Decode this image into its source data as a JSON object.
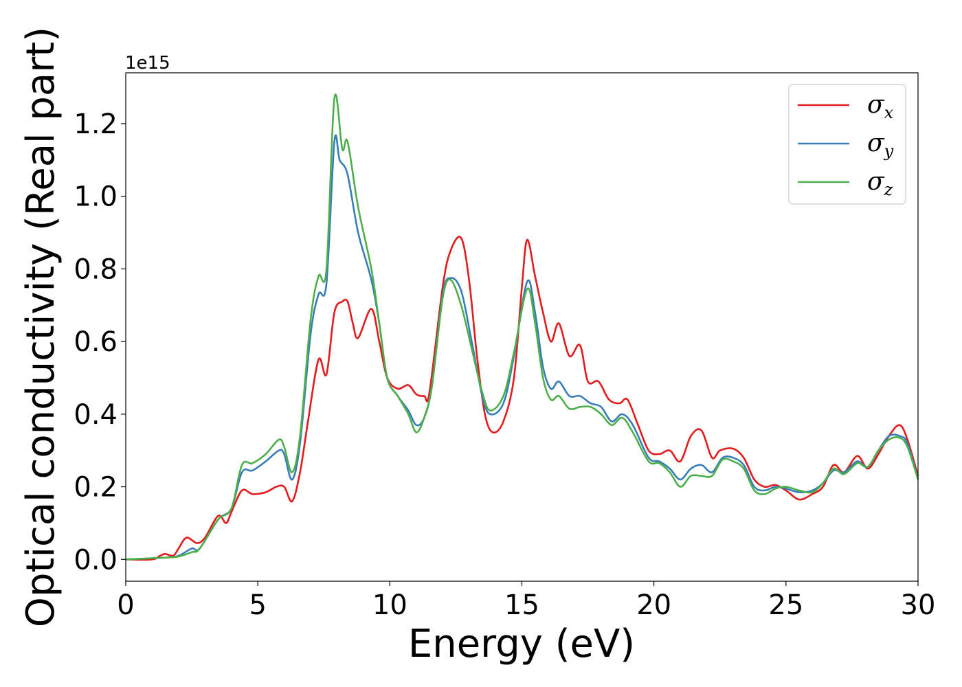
{
  "chart_data": {
    "type": "line",
    "title": "",
    "xlabel": "Energy (eV)",
    "ylabel": "Optical conductivity (Real part)",
    "y_offset_label": "1e15",
    "xlim": [
      0,
      30
    ],
    "ylim": [
      -0.06,
      1.34
    ],
    "xticks": [
      0,
      5,
      10,
      15,
      20,
      25,
      30
    ],
    "xtick_labels": [
      "0",
      "5",
      "10",
      "15",
      "20",
      "25",
      "30"
    ],
    "yticks": [
      0.0,
      0.2,
      0.4,
      0.6,
      0.8,
      1.0,
      1.2
    ],
    "ytick_labels": [
      "0.0",
      "0.2",
      "0.4",
      "0.6",
      "0.8",
      "1.0",
      "1.2"
    ],
    "grid": false,
    "legend_position": "top-right",
    "series": [
      {
        "name": "σx",
        "legend_symbol": "σ",
        "legend_subscript": "x",
        "color": "#e41a1c",
        "points": [
          [
            0,
            0
          ],
          [
            1,
            0
          ],
          [
            1.3,
            0.01
          ],
          [
            1.5,
            0.015
          ],
          [
            1.8,
            0.01
          ],
          [
            2,
            0.03
          ],
          [
            2.3,
            0.06
          ],
          [
            2.7,
            0.045
          ],
          [
            3,
            0.06
          ],
          [
            3.5,
            0.12
          ],
          [
            3.8,
            0.1
          ],
          [
            4,
            0.13
          ],
          [
            4.4,
            0.19
          ],
          [
            4.8,
            0.18
          ],
          [
            5.3,
            0.185
          ],
          [
            5.7,
            0.2
          ],
          [
            6,
            0.2
          ],
          [
            6.3,
            0.16
          ],
          [
            6.6,
            0.24
          ],
          [
            6.9,
            0.38
          ],
          [
            7.3,
            0.55
          ],
          [
            7.6,
            0.51
          ],
          [
            7.9,
            0.68
          ],
          [
            8.2,
            0.71
          ],
          [
            8.4,
            0.71
          ],
          [
            8.6,
            0.65
          ],
          [
            8.8,
            0.61
          ],
          [
            9.3,
            0.69
          ],
          [
            9.6,
            0.6
          ],
          [
            9.9,
            0.5
          ],
          [
            10.3,
            0.47
          ],
          [
            10.7,
            0.48
          ],
          [
            11,
            0.455
          ],
          [
            11.3,
            0.45
          ],
          [
            11.5,
            0.46
          ],
          [
            12,
            0.75
          ],
          [
            12.3,
            0.85
          ],
          [
            12.7,
            0.885
          ],
          [
            13,
            0.77
          ],
          [
            13.3,
            0.56
          ],
          [
            13.6,
            0.4
          ],
          [
            13.9,
            0.35
          ],
          [
            14.3,
            0.38
          ],
          [
            14.7,
            0.5
          ],
          [
            15,
            0.75
          ],
          [
            15.2,
            0.88
          ],
          [
            15.5,
            0.78
          ],
          [
            15.8,
            0.68
          ],
          [
            16.1,
            0.6
          ],
          [
            16.4,
            0.65
          ],
          [
            16.8,
            0.56
          ],
          [
            17.2,
            0.59
          ],
          [
            17.5,
            0.49
          ],
          [
            17.9,
            0.49
          ],
          [
            18.3,
            0.44
          ],
          [
            18.7,
            0.43
          ],
          [
            19,
            0.44
          ],
          [
            19.4,
            0.37
          ],
          [
            19.8,
            0.3
          ],
          [
            20.2,
            0.29
          ],
          [
            20.6,
            0.3
          ],
          [
            21,
            0.27
          ],
          [
            21.4,
            0.34
          ],
          [
            21.8,
            0.355
          ],
          [
            22.2,
            0.28
          ],
          [
            22.5,
            0.3
          ],
          [
            23,
            0.305
          ],
          [
            23.4,
            0.28
          ],
          [
            23.8,
            0.22
          ],
          [
            24.2,
            0.2
          ],
          [
            24.6,
            0.205
          ],
          [
            25,
            0.19
          ],
          [
            25.5,
            0.165
          ],
          [
            26,
            0.18
          ],
          [
            26.4,
            0.2
          ],
          [
            26.8,
            0.26
          ],
          [
            27.2,
            0.24
          ],
          [
            27.7,
            0.285
          ],
          [
            28.1,
            0.25
          ],
          [
            28.5,
            0.29
          ],
          [
            28.9,
            0.34
          ],
          [
            29.3,
            0.37
          ],
          [
            29.6,
            0.33
          ],
          [
            30,
            0.23
          ]
        ]
      },
      {
        "name": "σy",
        "legend_symbol": "σ",
        "legend_subscript": "y",
        "color": "#377eb8",
        "points": [
          [
            0,
            0
          ],
          [
            1.5,
            0.005
          ],
          [
            2,
            0.01
          ],
          [
            2.5,
            0.03
          ],
          [
            2.8,
            0.03
          ],
          [
            3.5,
            0.11
          ],
          [
            4,
            0.14
          ],
          [
            4.4,
            0.24
          ],
          [
            4.8,
            0.245
          ],
          [
            5.3,
            0.27
          ],
          [
            5.8,
            0.3
          ],
          [
            6,
            0.29
          ],
          [
            6.3,
            0.22
          ],
          [
            6.6,
            0.32
          ],
          [
            7,
            0.62
          ],
          [
            7.3,
            0.73
          ],
          [
            7.6,
            0.76
          ],
          [
            7.9,
            1.15
          ],
          [
            8.1,
            1.1
          ],
          [
            8.4,
            1.06
          ],
          [
            8.8,
            0.9
          ],
          [
            9.3,
            0.77
          ],
          [
            9.6,
            0.65
          ],
          [
            9.9,
            0.5
          ],
          [
            10.3,
            0.45
          ],
          [
            10.7,
            0.41
          ],
          [
            11,
            0.37
          ],
          [
            11.3,
            0.39
          ],
          [
            11.6,
            0.48
          ],
          [
            12,
            0.73
          ],
          [
            12.3,
            0.775
          ],
          [
            12.7,
            0.74
          ],
          [
            13.1,
            0.6
          ],
          [
            13.5,
            0.45
          ],
          [
            13.8,
            0.4
          ],
          [
            14.3,
            0.43
          ],
          [
            14.7,
            0.56
          ],
          [
            15.2,
            0.765
          ],
          [
            15.5,
            0.68
          ],
          [
            15.8,
            0.53
          ],
          [
            16.1,
            0.47
          ],
          [
            16.4,
            0.49
          ],
          [
            16.8,
            0.45
          ],
          [
            17.2,
            0.45
          ],
          [
            17.6,
            0.43
          ],
          [
            18,
            0.42
          ],
          [
            18.4,
            0.38
          ],
          [
            18.8,
            0.4
          ],
          [
            19.2,
            0.37
          ],
          [
            19.8,
            0.28
          ],
          [
            20.2,
            0.27
          ],
          [
            20.6,
            0.25
          ],
          [
            21,
            0.22
          ],
          [
            21.4,
            0.25
          ],
          [
            21.8,
            0.26
          ],
          [
            22.2,
            0.24
          ],
          [
            22.6,
            0.28
          ],
          [
            23,
            0.28
          ],
          [
            23.4,
            0.26
          ],
          [
            23.8,
            0.2
          ],
          [
            24.2,
            0.19
          ],
          [
            24.6,
            0.2
          ],
          [
            25,
            0.195
          ],
          [
            25.5,
            0.185
          ],
          [
            26,
            0.19
          ],
          [
            26.4,
            0.21
          ],
          [
            26.8,
            0.245
          ],
          [
            27.2,
            0.24
          ],
          [
            27.7,
            0.27
          ],
          [
            28.1,
            0.255
          ],
          [
            28.5,
            0.3
          ],
          [
            28.9,
            0.34
          ],
          [
            29.3,
            0.34
          ],
          [
            29.6,
            0.32
          ],
          [
            30,
            0.22
          ]
        ]
      },
      {
        "name": "σz",
        "legend_symbol": "σ",
        "legend_subscript": "z",
        "color": "#4daf4a",
        "points": [
          [
            0,
            0
          ],
          [
            1.5,
            0.005
          ],
          [
            2,
            0.008
          ],
          [
            2.5,
            0.02
          ],
          [
            2.8,
            0.03
          ],
          [
            3.5,
            0.11
          ],
          [
            4,
            0.14
          ],
          [
            4.4,
            0.26
          ],
          [
            4.8,
            0.265
          ],
          [
            5.3,
            0.29
          ],
          [
            5.8,
            0.33
          ],
          [
            6,
            0.31
          ],
          [
            6.3,
            0.24
          ],
          [
            6.6,
            0.34
          ],
          [
            7,
            0.66
          ],
          [
            7.3,
            0.78
          ],
          [
            7.6,
            0.8
          ],
          [
            7.9,
            1.27
          ],
          [
            8.2,
            1.13
          ],
          [
            8.4,
            1.15
          ],
          [
            8.8,
            0.97
          ],
          [
            9.3,
            0.8
          ],
          [
            9.6,
            0.65
          ],
          [
            9.9,
            0.5
          ],
          [
            10.3,
            0.45
          ],
          [
            10.7,
            0.4
          ],
          [
            11,
            0.35
          ],
          [
            11.3,
            0.39
          ],
          [
            11.6,
            0.48
          ],
          [
            12,
            0.72
          ],
          [
            12.3,
            0.77
          ],
          [
            12.7,
            0.7
          ],
          [
            13.1,
            0.58
          ],
          [
            13.5,
            0.46
          ],
          [
            13.8,
            0.41
          ],
          [
            14.3,
            0.45
          ],
          [
            14.7,
            0.57
          ],
          [
            15.2,
            0.745
          ],
          [
            15.5,
            0.65
          ],
          [
            15.8,
            0.5
          ],
          [
            16.1,
            0.44
          ],
          [
            16.4,
            0.45
          ],
          [
            16.8,
            0.415
          ],
          [
            17.2,
            0.42
          ],
          [
            17.6,
            0.42
          ],
          [
            18,
            0.4
          ],
          [
            18.4,
            0.37
          ],
          [
            18.8,
            0.39
          ],
          [
            19.2,
            0.35
          ],
          [
            19.8,
            0.27
          ],
          [
            20.2,
            0.265
          ],
          [
            20.6,
            0.24
          ],
          [
            21,
            0.2
          ],
          [
            21.4,
            0.23
          ],
          [
            21.8,
            0.23
          ],
          [
            22.2,
            0.23
          ],
          [
            22.6,
            0.275
          ],
          [
            23,
            0.27
          ],
          [
            23.4,
            0.25
          ],
          [
            23.8,
            0.19
          ],
          [
            24.2,
            0.18
          ],
          [
            24.6,
            0.195
          ],
          [
            25,
            0.2
          ],
          [
            25.5,
            0.19
          ],
          [
            26,
            0.185
          ],
          [
            26.4,
            0.21
          ],
          [
            26.8,
            0.25
          ],
          [
            27.2,
            0.235
          ],
          [
            27.7,
            0.265
          ],
          [
            28.1,
            0.255
          ],
          [
            28.5,
            0.3
          ],
          [
            28.9,
            0.33
          ],
          [
            29.3,
            0.335
          ],
          [
            29.6,
            0.31
          ],
          [
            30,
            0.22
          ]
        ]
      }
    ]
  }
}
